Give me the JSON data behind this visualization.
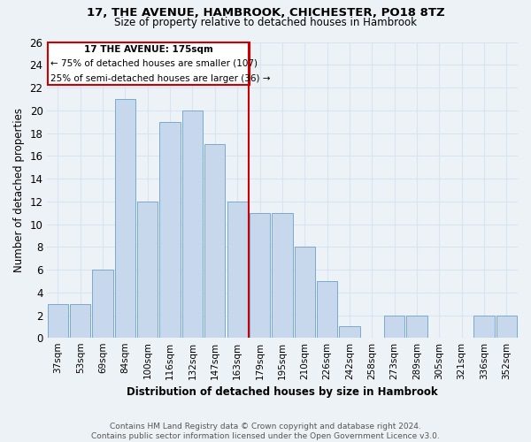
{
  "title": "17, THE AVENUE, HAMBROOK, CHICHESTER, PO18 8TZ",
  "subtitle": "Size of property relative to detached houses in Hambrook",
  "xlabel": "Distribution of detached houses by size in Hambrook",
  "ylabel": "Number of detached properties",
  "categories": [
    "37sqm",
    "53sqm",
    "69sqm",
    "84sqm",
    "100sqm",
    "116sqm",
    "132sqm",
    "147sqm",
    "163sqm",
    "179sqm",
    "195sqm",
    "210sqm",
    "226sqm",
    "242sqm",
    "258sqm",
    "273sqm",
    "289sqm",
    "305sqm",
    "321sqm",
    "336sqm",
    "352sqm"
  ],
  "values": [
    3,
    3,
    6,
    21,
    12,
    19,
    20,
    17,
    12,
    11,
    11,
    8,
    5,
    1,
    0,
    2,
    2,
    0,
    0,
    2,
    2
  ],
  "bar_color": "#c8d8ec",
  "bar_edgecolor": "#7aaad0",
  "bar_linewidth": 0.7,
  "vline_color": "#cc0000",
  "vline_label": "17 THE AVENUE: 175sqm",
  "annotation_line1": "← 75% of detached houses are smaller (107)",
  "annotation_line2": "25% of semi-detached houses are larger (36) →",
  "annotation_box_color": "#cc0000",
  "annotation_bg": "#ffffff",
  "ylim": [
    0,
    26
  ],
  "yticks": [
    0,
    2,
    4,
    6,
    8,
    10,
    12,
    14,
    16,
    18,
    20,
    22,
    24,
    26
  ],
  "footnote1": "Contains HM Land Registry data © Crown copyright and database right 2024.",
  "footnote2": "Contains public sector information licensed under the Open Government Licence v3.0.",
  "bg_color": "#edf2f7",
  "grid_color": "#d8e4f0"
}
